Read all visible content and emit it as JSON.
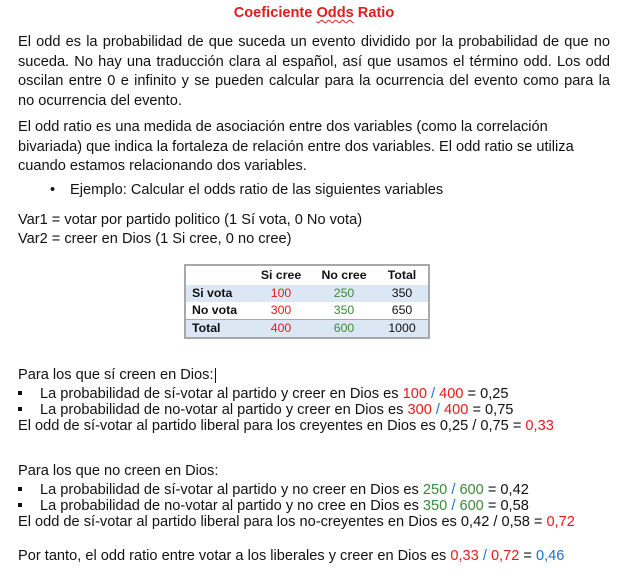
{
  "title_part1": "Coeficiente ",
  "title_squiggle": "Odds",
  "title_part2": " Ratio",
  "para1": "El odd es la probabilidad de que suceda un evento dividido por la probabilidad de que no suceda. No hay una traducción clara al español, así que usamos el término odd. Los odd oscilan entre 0 e infinito y se pueden calcular para la ocurrencia del evento como para la no ocurrencia del evento.",
  "para2": "El odd ratio es una medida de asociación entre dos variables (como la correlación bivariada) que indica la fortaleza de relación entre dos variables. El odd ratio se utiliza cuando estamos relacionando dos variables.",
  "example_bullet": "Ejemplo: Calcular el odds ratio de las siguientes variables",
  "var1": "Var1 = votar por partido politico (1 Sí vota, 0 No vota)",
  "var2": "Var2 = creer en Dios (1 Si cree, 0 no cree)",
  "table": {
    "headers": [
      "",
      "Si cree",
      "No cree",
      "Total"
    ],
    "rows": [
      {
        "label": "Si vota",
        "values": [
          "100",
          "250",
          "350"
        ]
      },
      {
        "label": "No vota",
        "values": [
          "300",
          "350",
          "650"
        ]
      },
      {
        "label": "Total",
        "values": [
          "400",
          "600",
          "1000"
        ]
      }
    ]
  },
  "section1": {
    "heading": "Para los que sí creen en Dios:",
    "bullets": [
      {
        "text": "La probabilidad de sí-votar al partido y creer en Dios es ",
        "num": "100",
        "sep": " / ",
        "den": "400",
        "result": " = 0,25"
      },
      {
        "text": "La probabilidad de no-votar al partido y creer en Dios es ",
        "num": "300",
        "sep": " / ",
        "den": "400",
        "result": " = 0,75"
      }
    ],
    "conclusion_text": "El odd de sí-votar al partido liberal para los creyentes en Dios es 0,25 / 0,75 = ",
    "conclusion_value": "0,33"
  },
  "section2": {
    "heading": "Para los que no creen en Dios:",
    "bullets": [
      {
        "text": "La probabilidad de sí-votar al partido y no creer en Dios es ",
        "num": "250",
        "sep": " / ",
        "den": "600",
        "result": " = 0,42"
      },
      {
        "text": "La probabilidad de no-votar al partido y no cree en Dios es ",
        "num": "350",
        "sep": " / ",
        "den": "600",
        "result": " = 0,58"
      }
    ],
    "conclusion_text": "El odd de sí-votar al partido liberal para los no-creyentes en Dios es 0,42 / 0,58 = ",
    "conclusion_value": "0,72"
  },
  "final": {
    "text": "Por tanto, el odd ratio entre votar a los liberales y creer en Dios es ",
    "a": "0,33",
    "sep": " / ",
    "b": "0,72",
    "eq": " = ",
    "result": "0,46"
  },
  "colors": {
    "red": "#e31b1b",
    "green": "#3b8a3b",
    "blue": "#1a73c8"
  }
}
